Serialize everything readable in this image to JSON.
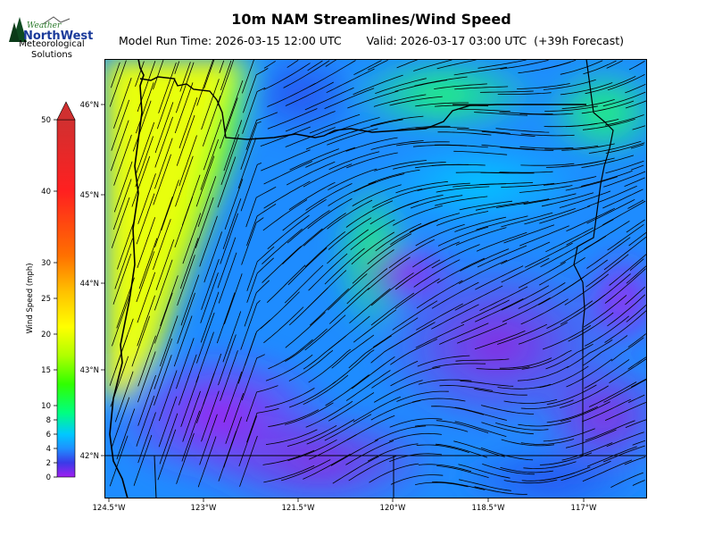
{
  "header": {
    "title": "10m NAM Streamlines/Wind Speed",
    "model_run": "Model Run Time: 2026-03-15 12:00 UTC",
    "valid": "Valid: 2026-03-17 03:00 UTC  (+39h Forecast)"
  },
  "logo": {
    "word_top": "Weather",
    "word_main": "NorthWest",
    "line1": "Meteorological",
    "line2": "Solutions"
  },
  "map": {
    "lon_ticks": [
      "124.5°W",
      "123°W",
      "121.5°W",
      "120°W",
      "118.5°W",
      "117°W"
    ],
    "lat_ticks": [
      "46°N",
      "45°N",
      "44°N",
      "43°N",
      "42°N"
    ]
  },
  "colorbar": {
    "label": "Wind Speed (mph)",
    "ticks": [
      "0",
      "2",
      "4",
      "6",
      "8",
      "10",
      "15",
      "20",
      "25",
      "30",
      "40",
      "50"
    ],
    "palette": [
      "#a020f0",
      "#3a3ae8",
      "#1e90ff",
      "#00d0ff",
      "#00ff80",
      "#30ff00",
      "#b0ff00",
      "#ffff00",
      "#ffb000",
      "#ff6000",
      "#ff2020",
      "#d03030"
    ]
  }
}
